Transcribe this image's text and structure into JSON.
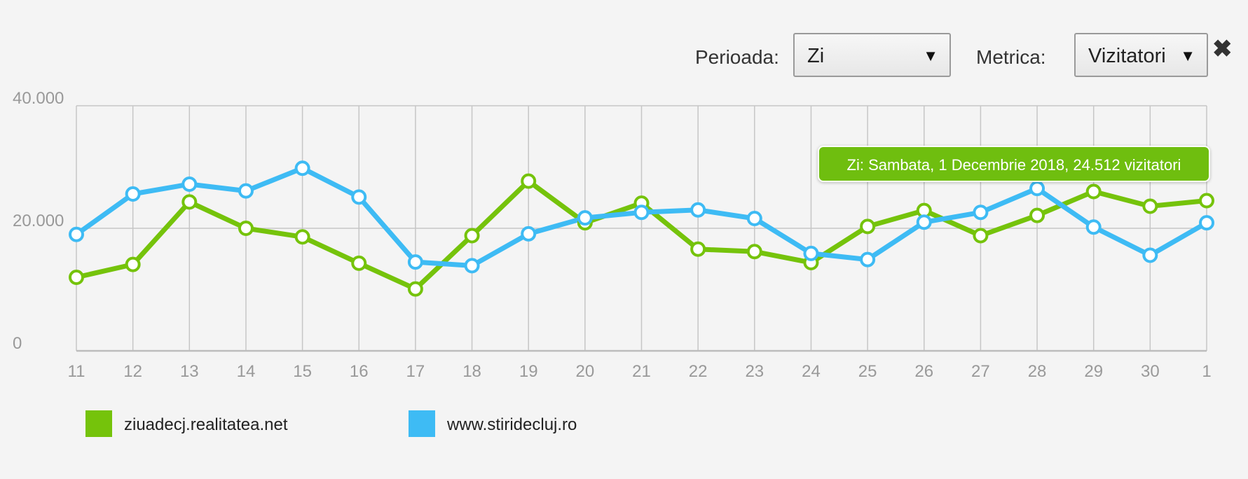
{
  "controls": {
    "period_label": "Perioada:",
    "period_value": "Zi",
    "metric_label": "Metrica:",
    "metric_value": "Vizitatori",
    "caret": "▼",
    "close_glyph": "✖"
  },
  "tooltip": {
    "text": "Zi: Sambata, 1 Decembrie 2018, 24.512 vizitatori"
  },
  "chart_data": {
    "type": "line",
    "categories": [
      "11",
      "12",
      "13",
      "14",
      "15",
      "16",
      "17",
      "18",
      "19",
      "20",
      "21",
      "22",
      "23",
      "24",
      "25",
      "26",
      "27",
      "28",
      "29",
      "30",
      "1"
    ],
    "ylim": [
      0,
      40000
    ],
    "yticks": [
      {
        "value": 0,
        "label": "0"
      },
      {
        "value": 20000,
        "label": "20.000"
      },
      {
        "value": 40000,
        "label": "40.000"
      }
    ],
    "grid": true,
    "legend_position": "bottom-left",
    "series": [
      {
        "name": "ziuadecj.realitatea.net",
        "color": "#75c30b",
        "values": [
          12000,
          14100,
          24300,
          20000,
          18600,
          14300,
          10100,
          18800,
          27700,
          20900,
          24100,
          16600,
          16200,
          14400,
          20300,
          22900,
          18800,
          22100,
          26000,
          23600,
          24512
        ]
      },
      {
        "name": "www.stiridecluj.ro",
        "color": "#3ebbf4",
        "values": [
          19000,
          25600,
          27200,
          26100,
          29800,
          25100,
          14500,
          13900,
          19100,
          21700,
          22600,
          23000,
          21600,
          15900,
          14900,
          21000,
          22600,
          26500,
          20200,
          15600,
          20900
        ]
      }
    ]
  }
}
